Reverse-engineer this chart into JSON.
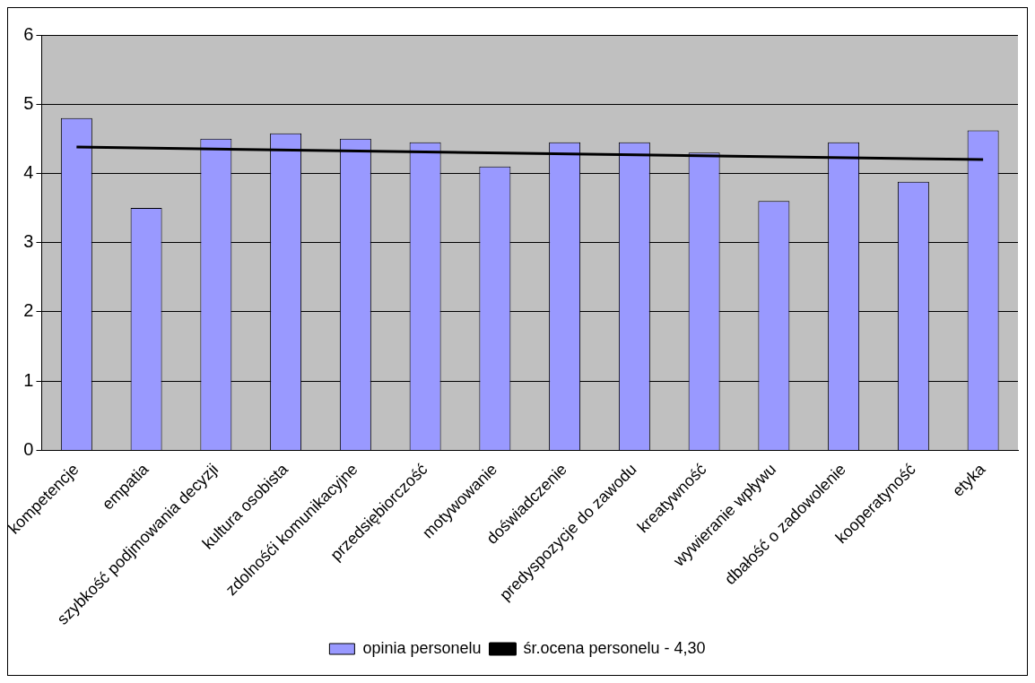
{
  "chart_data": {
    "type": "bar",
    "categories": [
      "kompetencje",
      "empatia",
      "szybkość podjmowania decyzji",
      "kultura osobista",
      "zdolnośći komunikacyjne",
      "przedsiębiorczość",
      "motywowanie",
      "doświadczenie",
      "predyspozycje do zawodu",
      "kreatywność",
      "wywieranie wpływu",
      "dbałość o zadowolenie",
      "kooperatyność",
      "etyka"
    ],
    "series": [
      {
        "name": "opinia personelu",
        "color": "#9999ff",
        "values": [
          4.8,
          3.5,
          4.5,
          4.58,
          4.5,
          4.45,
          4.1,
          4.45,
          4.45,
          4.3,
          3.6,
          4.45,
          3.88,
          4.62
        ]
      },
      {
        "name": "śr.ocena personelu - 4,30",
        "type": "line",
        "color": "#000000",
        "values": [
          4.38,
          null,
          null,
          null,
          null,
          null,
          null,
          null,
          null,
          null,
          null,
          null,
          null,
          4.2
        ]
      }
    ],
    "ylim": [
      0,
      6
    ],
    "yticks": [
      0,
      1,
      2,
      3,
      4,
      5,
      6
    ],
    "grid": "y",
    "legend": "bottom",
    "marker": "none",
    "line_style": "solid"
  }
}
